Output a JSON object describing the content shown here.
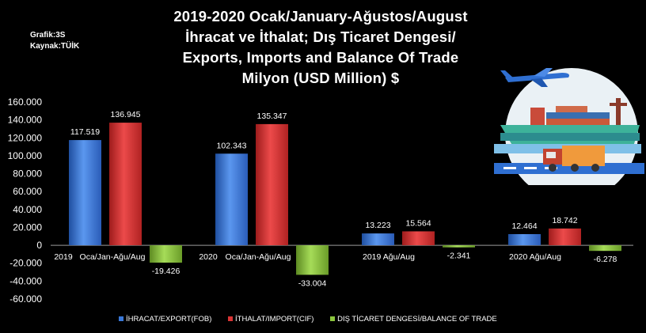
{
  "chart_title_lines": [
    "2019-2020 Ocak/January-Ağustos/August",
    "İhracat ve İthalat; Dış Ticaret Dengesi/",
    "Exports, Imports and Balance Of Trade",
    "Milyon (USD Million) $"
  ],
  "meta": {
    "graph": "Grafik:3S",
    "source": "Kaynak:TÜİK"
  },
  "colors": {
    "export": "#3a78d8",
    "import": "#d93434",
    "balance": "#8cc63e",
    "background": "#000000"
  },
  "icons": [
    "airplane-icon",
    "cargo-ship-icon",
    "truck-icon"
  ],
  "chart_data": {
    "type": "bar",
    "categories": [
      "2019 Oca/Jan-Ağu/Aug",
      "2020 Oca/Jan-Ağu/Aug",
      "2019 Ağu/Aug",
      "2020 Ağu/Aug"
    ],
    "category_labels": [
      [
        "2019",
        "Oca/Jan-Ağu/Aug"
      ],
      [
        "2020",
        "Oca/Jan-Ağu/Aug"
      ],
      [
        "2019 Ağu/Aug"
      ],
      [
        "2020 Ağu/Aug"
      ]
    ],
    "series": [
      {
        "name": "İHRACAT/EXPORT(FOB)",
        "values": [
          117519,
          102343,
          13223,
          12464
        ],
        "labels": [
          "117.519",
          "102.343",
          "13.223",
          "12.464"
        ]
      },
      {
        "name": "İTHALAT/IMPORT(CIF)",
        "values": [
          136945,
          135347,
          15564,
          18742
        ],
        "labels": [
          "136.945",
          "135.347",
          "15.564",
          "18.742"
        ]
      },
      {
        "name": "DIŞ TİCARET DENGESİ/BALANCE OF TRADE",
        "values": [
          -19426,
          -33004,
          -2341,
          -6278
        ],
        "labels": [
          "-19.426",
          "-33.004",
          "-2.341",
          "-6.278"
        ]
      }
    ],
    "y_ticks": [
      "160.000",
      "140.000",
      "120.000",
      "100.000",
      "80.000",
      "60.000",
      "40.000",
      "20.000",
      "0",
      "-20.000",
      "-40.000",
      "-60.000"
    ],
    "ylim": [
      -60000,
      160000
    ],
    "grid": false,
    "legend": "bottom"
  }
}
